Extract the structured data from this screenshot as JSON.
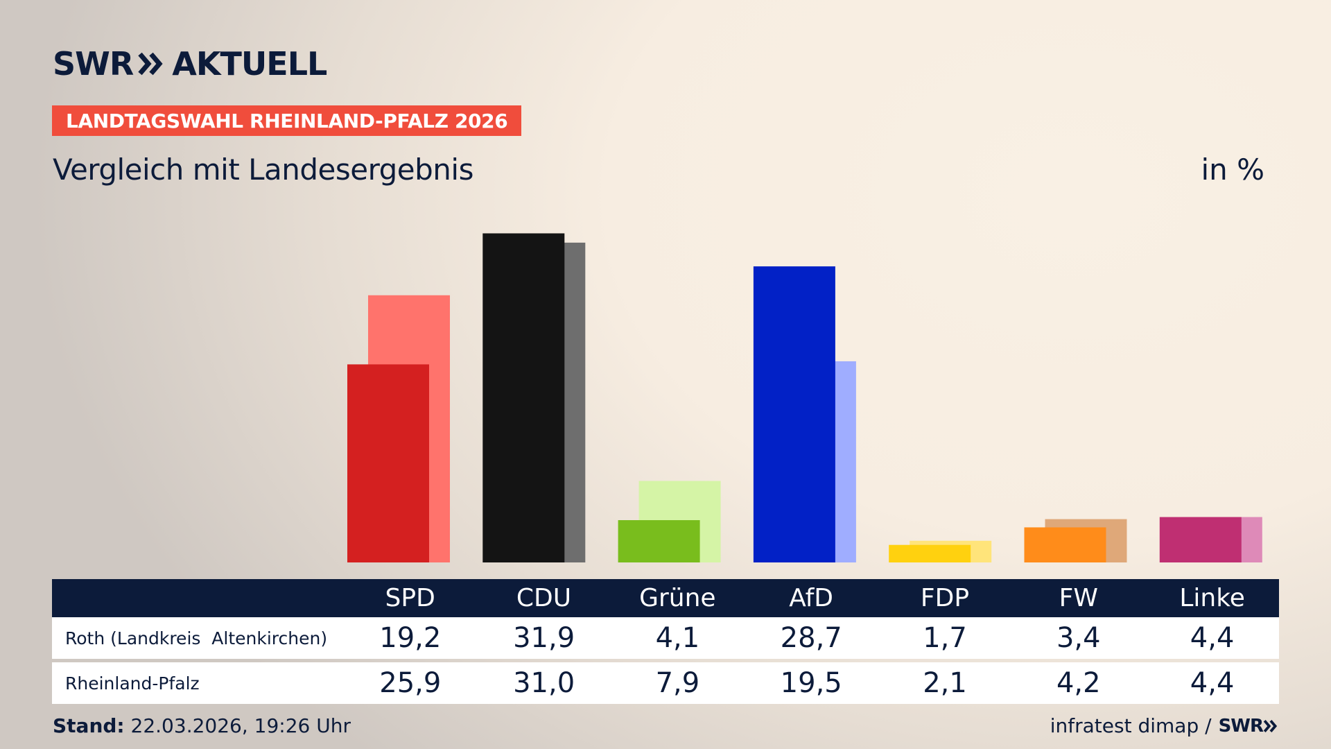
{
  "brand": {
    "logo_left": "SWR",
    "logo_right": "AKTUELL"
  },
  "header": {
    "badge": "LANDTAGSWAHL RHEINLAND-PFALZ 2026",
    "subtitle": "Vergleich mit Landesergebnis",
    "unit": "in %"
  },
  "colors": {
    "navy": "#0c1b3a",
    "badge": "#f04d3c",
    "SPD": [
      "#d42020",
      "#ff736c"
    ],
    "CDU": [
      "#141414",
      "#6e6e6e"
    ],
    "Grüne": [
      "#79bd1d",
      "#d5f4a6"
    ],
    "AfD": [
      "#0221c6",
      "#9fadff"
    ],
    "FDP": [
      "#ffd10f",
      "#ffe47a"
    ],
    "FW": [
      "#ff8c1a",
      "#dfa879"
    ],
    "Linke": [
      "#bf2f72",
      "#de8ab8"
    ]
  },
  "chart_data": {
    "type": "bar",
    "categories": [
      "SPD",
      "CDU",
      "Grüne",
      "AfD",
      "FDP",
      "FW",
      "Linke"
    ],
    "series": [
      {
        "name": "Roth (Landkreis  Altenkirchen)",
        "values": [
          19.2,
          31.9,
          4.1,
          28.7,
          1.7,
          3.4,
          4.4
        ]
      },
      {
        "name": "Rheinland-Pfalz",
        "values": [
          25.9,
          31.0,
          7.9,
          19.5,
          2.1,
          4.2,
          4.4
        ]
      }
    ],
    "ylim": [
      0,
      32
    ]
  },
  "table": {
    "rows": [
      {
        "label": "Roth (Landkreis  Altenkirchen)",
        "values": [
          "19,2",
          "31,9",
          "4,1",
          "28,7",
          "1,7",
          "3,4",
          "4,4"
        ]
      },
      {
        "label": "Rheinland-Pfalz",
        "values": [
          "25,9",
          "31,0",
          "7,9",
          "19,5",
          "2,1",
          "4,2",
          "4,4"
        ]
      }
    ]
  },
  "footer": {
    "stand_label": "Stand:",
    "stand_value": "22.03.2026, 19:26 Uhr",
    "source": "infratest dimap /",
    "source_logo": "SWR"
  }
}
